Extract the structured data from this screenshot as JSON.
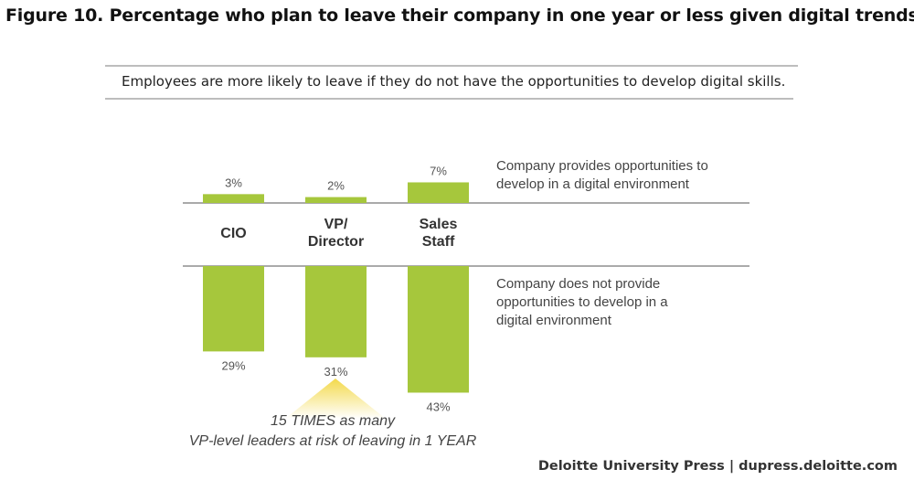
{
  "title": "Figure 10. Percentage who plan to leave their company in one year or less given digital trends",
  "subtitle": "Employees are more likely to leave if they do not have the opportunities to develop digital skills.",
  "footer": "Deloitte University Press  |  dupress.deloitte.com",
  "chart_data": {
    "type": "bar",
    "categories": [
      [
        "CIO"
      ],
      [
        "VP/",
        "Director"
      ],
      [
        "Sales",
        "Staff"
      ]
    ],
    "series": [
      {
        "name": "Company provides opportunities to develop in a digital environment",
        "name_lines": [
          "Company provides opportunities to",
          "develop in a digital environment"
        ],
        "values": [
          3,
          2,
          7
        ],
        "labels": [
          "3%",
          "2%",
          "7%"
        ]
      },
      {
        "name": "Company does not provide opportunities to develop in a digital environment",
        "name_lines": [
          "Company does not provide",
          "opportunities to develop in a",
          "digital environment"
        ],
        "values": [
          29,
          31,
          43
        ],
        "labels": [
          "29%",
          "31%",
          "43%"
        ]
      }
    ],
    "annotation": [
      "15 TIMES as many",
      "VP-level leaders at risk of leaving in 1 YEAR"
    ],
    "bar_color": "#a6c73c",
    "highlight_color": "#f3d94a"
  }
}
